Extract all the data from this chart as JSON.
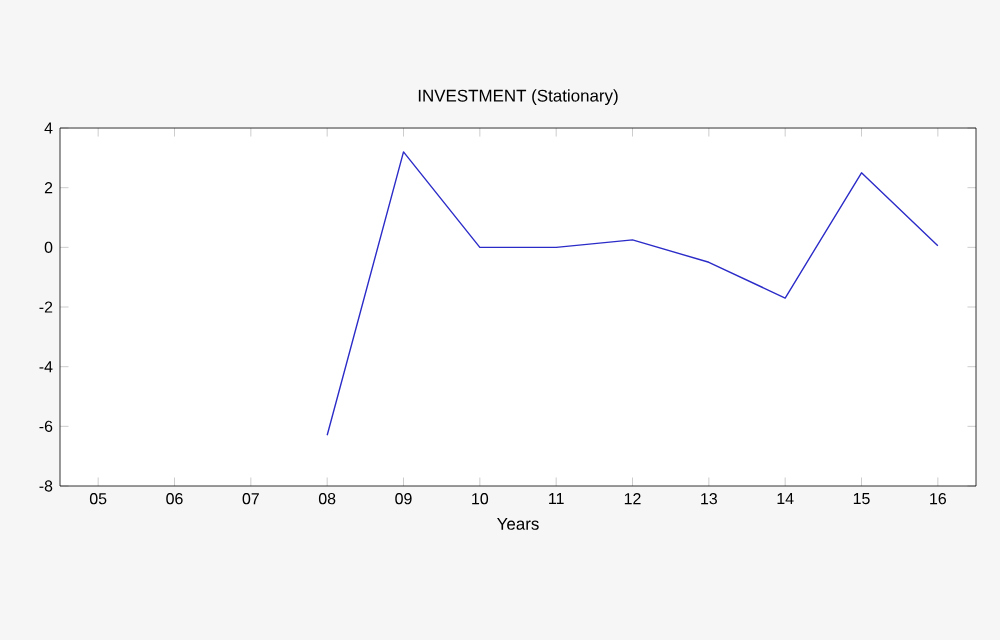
{
  "chart_data": {
    "type": "line",
    "title": "INVESTMENT (Stationary)",
    "xlabel": "Years",
    "categories": [
      "05",
      "06",
      "07",
      "08",
      "09",
      "10",
      "11",
      "12",
      "13",
      "14",
      "15",
      "16"
    ],
    "series": [
      {
        "color": "#2b2bc8",
        "values": [
          null,
          null,
          null,
          -6.3,
          3.2,
          0.0,
          0.0,
          0.25,
          -0.5,
          -1.7,
          2.5,
          0.05
        ]
      }
    ],
    "ylim": [
      -8,
      4
    ],
    "yticks": [
      -8,
      -6,
      -4,
      -2,
      0,
      2,
      4
    ],
    "grid": false,
    "marker": "none",
    "line_style": "solid"
  }
}
